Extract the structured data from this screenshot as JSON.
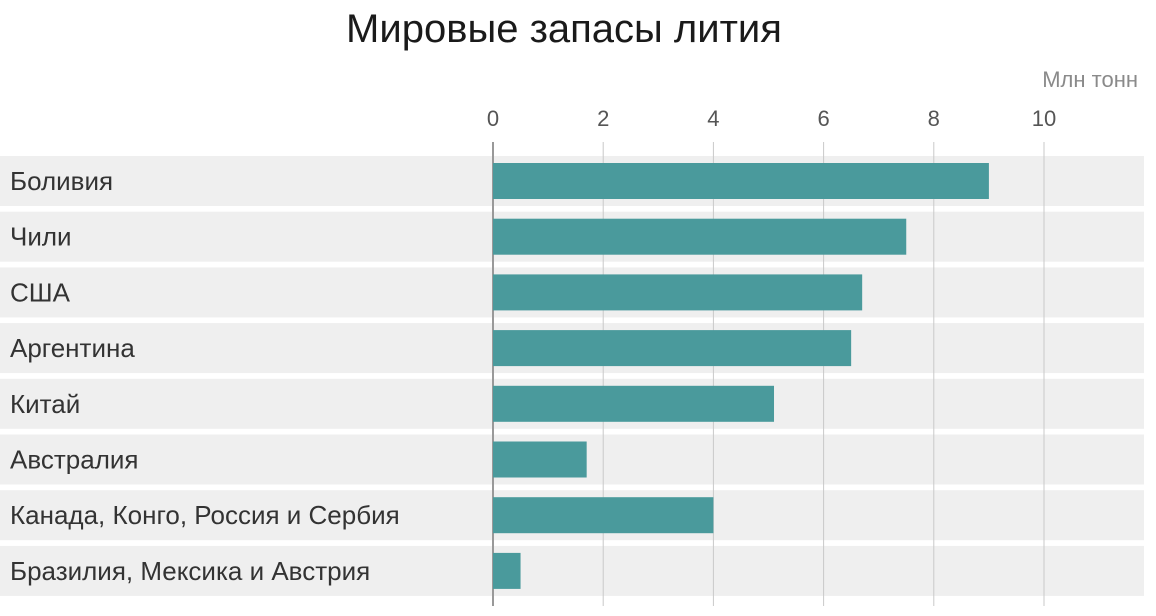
{
  "chart_data": {
    "type": "bar",
    "orientation": "horizontal",
    "title": "Мировые запасы лития",
    "unit_label": "Млн тонн",
    "xlabel": "",
    "ylabel": "",
    "categories": [
      "Боливия",
      "Чили",
      "США",
      "Аргентина",
      "Китай",
      "Австралия",
      "Канада, Конго, Россия и Сербия",
      "Бразилия, Мексика и Австрия"
    ],
    "values": [
      9.0,
      7.5,
      6.7,
      6.5,
      5.1,
      1.7,
      4.0,
      0.5
    ],
    "xlim": [
      0,
      10
    ],
    "xticks": [
      "0",
      "2",
      "4",
      "6",
      "8",
      "10"
    ],
    "grid": true,
    "colors": {
      "bar": "#4a9a9c",
      "row_background": "#efefef",
      "gridline": "#c9c9c9",
      "zero_axis": "#999999"
    }
  }
}
